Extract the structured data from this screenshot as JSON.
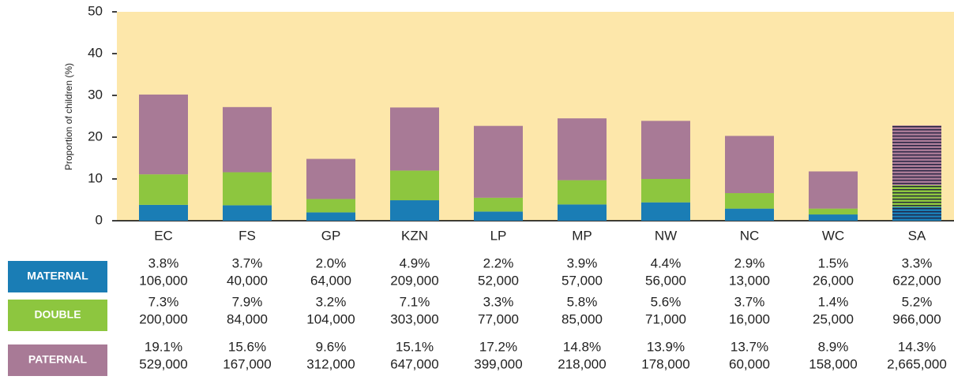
{
  "chart_data": {
    "type": "stacked_bar",
    "y_label": "Proportion of children (%)",
    "categories": [
      "EC",
      "FS",
      "GP",
      "KZN",
      "LP",
      "MP",
      "NW",
      "NC",
      "WC",
      "SA"
    ],
    "hatched": [
      false,
      false,
      false,
      false,
      false,
      false,
      false,
      false,
      false,
      true
    ],
    "series": [
      {
        "name": "MATERNAL",
        "color": "#1a7db5",
        "values": [
          3.8,
          3.7,
          2.0,
          4.9,
          2.2,
          3.9,
          4.4,
          2.9,
          1.5,
          3.3
        ],
        "value_labels": [
          "3.8%",
          "3.7%",
          "2.0%",
          "4.9%",
          "2.2%",
          "3.9%",
          "4.4%",
          "2.9%",
          "1.5%",
          "3.3%"
        ],
        "counts": [
          "106,000",
          "40,000",
          "64,000",
          "209,000",
          "52,000",
          "57,000",
          "56,000",
          "13,000",
          "26,000",
          "622,000"
        ]
      },
      {
        "name": "DOUBLE",
        "color": "#8dc63f",
        "values": [
          7.3,
          7.9,
          3.2,
          7.1,
          3.3,
          5.8,
          5.6,
          3.7,
          1.4,
          5.2
        ],
        "value_labels": [
          "7.3%",
          "7.9%",
          "3.2%",
          "7.1%",
          "3.3%",
          "5.8%",
          "5.6%",
          "3.7%",
          "1.4%",
          "5.2%"
        ],
        "counts": [
          "200,000",
          "84,000",
          "104,000",
          "303,000",
          "77,000",
          "85,000",
          "71,000",
          "16,000",
          "25,000",
          "966,000"
        ]
      },
      {
        "name": "PATERNAL",
        "color": "#a87a96",
        "values": [
          19.1,
          15.6,
          9.6,
          15.1,
          17.2,
          14.8,
          13.9,
          13.7,
          8.9,
          14.3
        ],
        "value_labels": [
          "19.1%",
          "15.6%",
          "9.6%",
          "15.1%",
          "17.2%",
          "14.8%",
          "13.9%",
          "13.7%",
          "8.9%",
          "14.3%"
        ],
        "counts": [
          "529,000",
          "167,000",
          "312,000",
          "647,000",
          "399,000",
          "218,000",
          "178,000",
          "60,000",
          "158,000",
          "2,665,000"
        ]
      }
    ],
    "ylim": [
      0,
      50
    ],
    "yticks": [
      0,
      10,
      20,
      30,
      40,
      50
    ],
    "plot_background": "#fde7aa"
  }
}
